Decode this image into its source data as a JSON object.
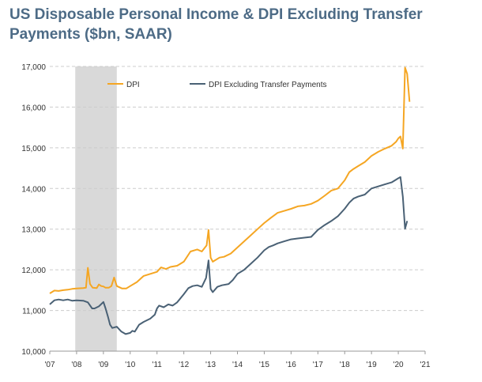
{
  "chart_data": {
    "type": "line",
    "title": "US Disposable Personal Income & DPI Excluding Transfer Payments ($bn, SAAR)",
    "xlabel": "",
    "ylabel": "",
    "ylim": [
      10000,
      17000
    ],
    "xlim": [
      2007.0,
      2021.0
    ],
    "grid": "horizontal-dashed",
    "legend": "top-left",
    "x_tick_labels": [
      "'07",
      "'08",
      "'09",
      "'10",
      "'11",
      "'12",
      "'13",
      "'14",
      "'15",
      "'16",
      "'17",
      "'18",
      "'19",
      "'20",
      "'21"
    ],
    "x_tick_values": [
      2007,
      2008,
      2009,
      2010,
      2011,
      2012,
      2013,
      2014,
      2015,
      2016,
      2017,
      2018,
      2019,
      2020,
      2021
    ],
    "y_tick_labels": [
      "10,000",
      "11,000",
      "12,000",
      "13,000",
      "14,000",
      "15,000",
      "16,000",
      "17,000"
    ],
    "y_tick_values": [
      10000,
      11000,
      12000,
      13000,
      14000,
      15000,
      16000,
      17000
    ],
    "recession": {
      "start": 2007.95,
      "end": 2009.5,
      "color": "#d9d9d9"
    },
    "series": [
      {
        "name": "DPI",
        "color": "#f5a623",
        "points": [
          [
            2007.0,
            11420
          ],
          [
            2007.17,
            11490
          ],
          [
            2007.33,
            11480
          ],
          [
            2007.5,
            11500
          ],
          [
            2007.67,
            11510
          ],
          [
            2007.83,
            11530
          ],
          [
            2008.0,
            11540
          ],
          [
            2008.25,
            11550
          ],
          [
            2008.35,
            11560
          ],
          [
            2008.42,
            12050
          ],
          [
            2008.5,
            11650
          ],
          [
            2008.6,
            11560
          ],
          [
            2008.75,
            11550
          ],
          [
            2008.83,
            11640
          ],
          [
            2008.92,
            11600
          ],
          [
            2009.0,
            11590
          ],
          [
            2009.08,
            11560
          ],
          [
            2009.2,
            11560
          ],
          [
            2009.3,
            11600
          ],
          [
            2009.4,
            11810
          ],
          [
            2009.5,
            11600
          ],
          [
            2009.7,
            11540
          ],
          [
            2009.85,
            11540
          ],
          [
            2010.0,
            11600
          ],
          [
            2010.25,
            11700
          ],
          [
            2010.5,
            11850
          ],
          [
            2010.75,
            11900
          ],
          [
            2011.0,
            11950
          ],
          [
            2011.15,
            12060
          ],
          [
            2011.33,
            12020
          ],
          [
            2011.5,
            12070
          ],
          [
            2011.75,
            12100
          ],
          [
            2012.0,
            12200
          ],
          [
            2012.25,
            12450
          ],
          [
            2012.5,
            12500
          ],
          [
            2012.67,
            12450
          ],
          [
            2012.85,
            12600
          ],
          [
            2012.92,
            12980
          ],
          [
            2013.0,
            12300
          ],
          [
            2013.08,
            12200
          ],
          [
            2013.33,
            12300
          ],
          [
            2013.5,
            12320
          ],
          [
            2013.75,
            12400
          ],
          [
            2014.0,
            12550
          ],
          [
            2014.25,
            12700
          ],
          [
            2014.5,
            12850
          ],
          [
            2014.75,
            13000
          ],
          [
            2015.0,
            13150
          ],
          [
            2015.25,
            13280
          ],
          [
            2015.5,
            13400
          ],
          [
            2015.75,
            13450
          ],
          [
            2016.0,
            13500
          ],
          [
            2016.25,
            13560
          ],
          [
            2016.5,
            13580
          ],
          [
            2016.75,
            13620
          ],
          [
            2017.0,
            13700
          ],
          [
            2017.25,
            13820
          ],
          [
            2017.5,
            13950
          ],
          [
            2017.75,
            14000
          ],
          [
            2018.0,
            14200
          ],
          [
            2018.17,
            14400
          ],
          [
            2018.33,
            14480
          ],
          [
            2018.5,
            14550
          ],
          [
            2018.75,
            14650
          ],
          [
            2019.0,
            14800
          ],
          [
            2019.25,
            14900
          ],
          [
            2019.5,
            14980
          ],
          [
            2019.75,
            15050
          ],
          [
            2019.92,
            15150
          ],
          [
            2020.0,
            15230
          ],
          [
            2020.08,
            15280
          ],
          [
            2020.17,
            14980
          ],
          [
            2020.25,
            16970
          ],
          [
            2020.33,
            16820
          ],
          [
            2020.42,
            16130
          ]
        ]
      },
      {
        "name": "DPI Excluding Transfer Payments",
        "color": "#4a6175",
        "points": [
          [
            2007.0,
            11150
          ],
          [
            2007.17,
            11250
          ],
          [
            2007.33,
            11270
          ],
          [
            2007.5,
            11250
          ],
          [
            2007.67,
            11270
          ],
          [
            2007.83,
            11240
          ],
          [
            2008.0,
            11250
          ],
          [
            2008.25,
            11240
          ],
          [
            2008.42,
            11200
          ],
          [
            2008.58,
            11050
          ],
          [
            2008.67,
            11050
          ],
          [
            2008.83,
            11100
          ],
          [
            2009.0,
            11210
          ],
          [
            2009.08,
            11050
          ],
          [
            2009.17,
            10850
          ],
          [
            2009.25,
            10650
          ],
          [
            2009.33,
            10570
          ],
          [
            2009.5,
            10600
          ],
          [
            2009.67,
            10480
          ],
          [
            2009.83,
            10420
          ],
          [
            2010.0,
            10450
          ],
          [
            2010.08,
            10500
          ],
          [
            2010.17,
            10480
          ],
          [
            2010.33,
            10650
          ],
          [
            2010.5,
            10720
          ],
          [
            2010.75,
            10800
          ],
          [
            2010.92,
            10900
          ],
          [
            2011.0,
            11050
          ],
          [
            2011.08,
            11120
          ],
          [
            2011.25,
            11080
          ],
          [
            2011.42,
            11150
          ],
          [
            2011.58,
            11120
          ],
          [
            2011.75,
            11200
          ],
          [
            2012.0,
            11400
          ],
          [
            2012.17,
            11550
          ],
          [
            2012.33,
            11600
          ],
          [
            2012.5,
            11620
          ],
          [
            2012.67,
            11580
          ],
          [
            2012.83,
            11800
          ],
          [
            2012.92,
            12230
          ],
          [
            2013.0,
            11530
          ],
          [
            2013.08,
            11450
          ],
          [
            2013.25,
            11580
          ],
          [
            2013.42,
            11620
          ],
          [
            2013.67,
            11650
          ],
          [
            2013.83,
            11750
          ],
          [
            2014.0,
            11900
          ],
          [
            2014.25,
            12000
          ],
          [
            2014.5,
            12150
          ],
          [
            2014.75,
            12300
          ],
          [
            2015.0,
            12480
          ],
          [
            2015.17,
            12560
          ],
          [
            2015.33,
            12600
          ],
          [
            2015.5,
            12650
          ],
          [
            2015.75,
            12700
          ],
          [
            2016.0,
            12750
          ],
          [
            2016.25,
            12770
          ],
          [
            2016.5,
            12790
          ],
          [
            2016.75,
            12810
          ],
          [
            2017.0,
            12980
          ],
          [
            2017.25,
            13100
          ],
          [
            2017.5,
            13200
          ],
          [
            2017.75,
            13320
          ],
          [
            2018.0,
            13500
          ],
          [
            2018.17,
            13650
          ],
          [
            2018.33,
            13750
          ],
          [
            2018.5,
            13800
          ],
          [
            2018.75,
            13850
          ],
          [
            2019.0,
            14000
          ],
          [
            2019.25,
            14050
          ],
          [
            2019.5,
            14100
          ],
          [
            2019.75,
            14150
          ],
          [
            2020.0,
            14250
          ],
          [
            2020.08,
            14280
          ],
          [
            2020.17,
            13800
          ],
          [
            2020.25,
            13010
          ],
          [
            2020.33,
            13200
          ]
        ]
      }
    ]
  }
}
